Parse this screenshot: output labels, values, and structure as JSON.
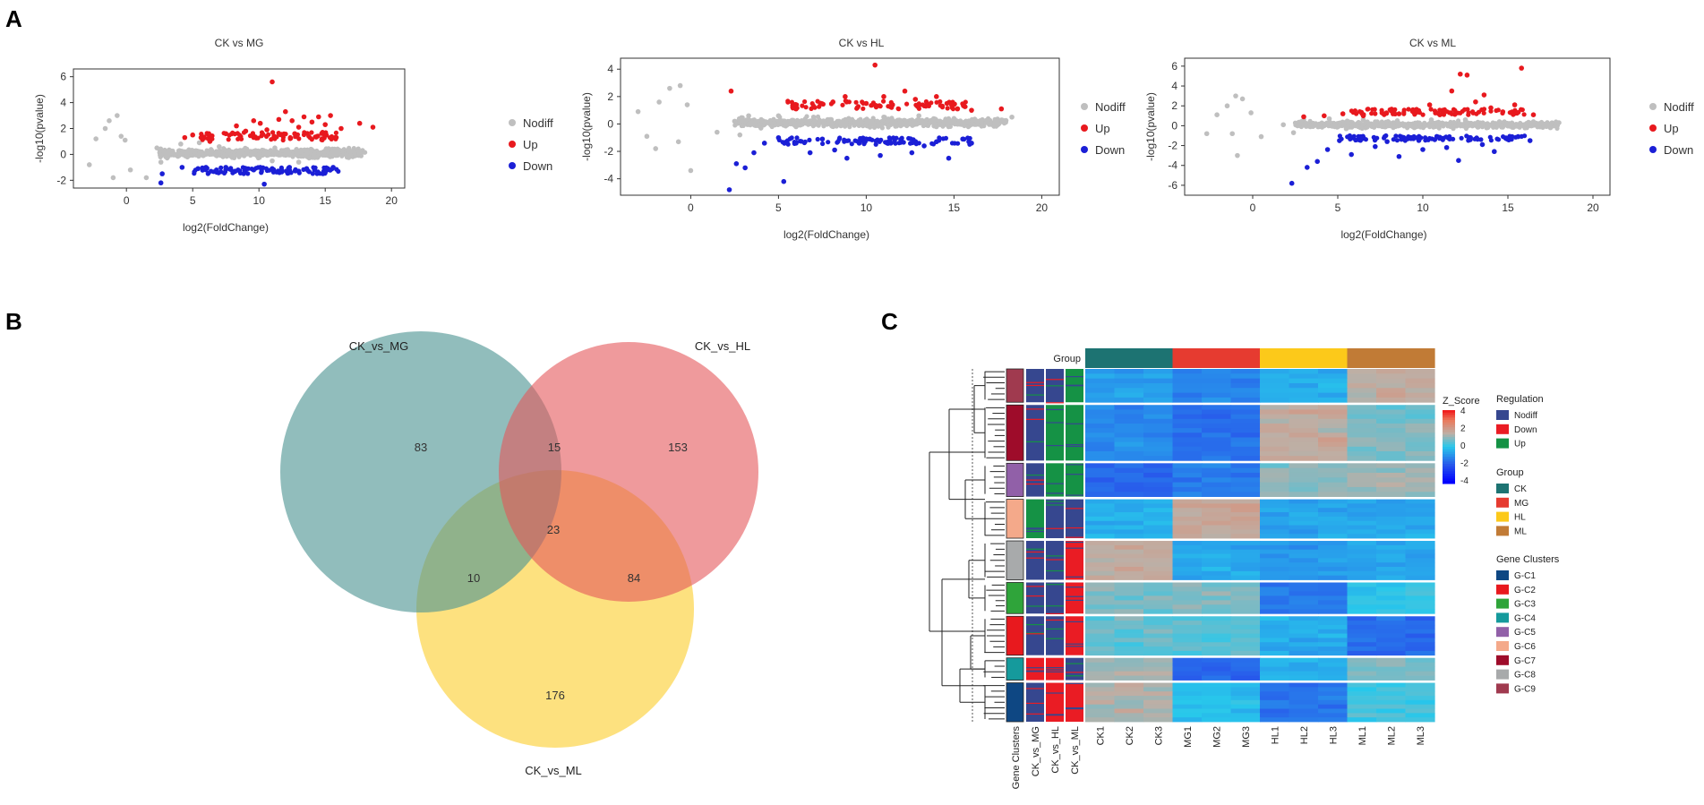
{
  "panels": {
    "a": "A",
    "b": "B",
    "c": "C"
  },
  "colors": {
    "nodiff": "#bfbfbf",
    "up": "#e8191e",
    "down": "#1b1fd6",
    "venn_a": "#4e9593",
    "venn_b": "#e4575a",
    "venn_c": "#fcd54e",
    "grp_ck": "#1d7372",
    "grp_mg": "#e63b30",
    "grp_hl": "#fcc91a",
    "grp_ml": "#c17b36",
    "reg_nodiff": "#36478f",
    "reg_down": "#ea1c24",
    "reg_up": "#159245"
  },
  "chart_data": [
    {
      "type": "scatter",
      "title": "CK vs MG",
      "xlabel": "log2(FoldChange)",
      "ylabel": "-log10(pvalue)",
      "xlim": [
        -4,
        21
      ],
      "ylim": [
        -2.6,
        6.6
      ],
      "xticks": [
        0,
        5,
        10,
        15,
        20
      ],
      "yticks": [
        -2,
        0,
        2,
        4,
        6
      ],
      "legend": [
        "Nodiff",
        "Up",
        "Down"
      ],
      "nodiff_points": [
        [
          -2.8,
          -0.8
        ],
        [
          -2.3,
          1.2
        ],
        [
          -1.6,
          2.0
        ],
        [
          -1.3,
          2.6
        ],
        [
          -0.7,
          3.0
        ],
        [
          -0.4,
          1.4
        ],
        [
          -1.0,
          -1.8
        ],
        [
          0.3,
          -1.2
        ],
        [
          1.5,
          -1.8
        ],
        [
          -0.1,
          1.1
        ],
        [
          2.3,
          0.5
        ],
        [
          2.6,
          -0.6
        ],
        [
          3.0,
          0.2
        ],
        [
          4.1,
          0.8
        ],
        [
          4.6,
          -0.2
        ],
        [
          5.5,
          0.9
        ],
        [
          6.2,
          0.1
        ],
        [
          7.0,
          0.6
        ],
        [
          8.0,
          -0.1
        ],
        [
          9.0,
          0.4
        ],
        [
          10.0,
          0.0
        ],
        [
          11.2,
          0.5
        ],
        [
          12.3,
          0.1
        ],
        [
          13.5,
          0.3
        ],
        [
          14.5,
          0.0
        ],
        [
          16.0,
          0.3
        ],
        [
          17.6,
          0.2
        ],
        [
          11.0,
          -0.5
        ],
        [
          13.0,
          -0.6
        ]
      ],
      "up_points": [
        [
          4.4,
          1.3
        ],
        [
          5.0,
          1.5
        ],
        [
          6.3,
          1.0
        ],
        [
          7.5,
          1.6
        ],
        [
          8.3,
          2.2
        ],
        [
          9.0,
          1.8
        ],
        [
          9.6,
          2.6
        ],
        [
          10.1,
          2.4
        ],
        [
          10.6,
          1.9
        ],
        [
          11.0,
          5.6
        ],
        [
          11.5,
          2.7
        ],
        [
          12.0,
          3.3
        ],
        [
          12.5,
          2.6
        ],
        [
          13.0,
          2.1
        ],
        [
          13.4,
          2.9
        ],
        [
          14.0,
          2.5
        ],
        [
          14.5,
          2.9
        ],
        [
          15.0,
          2.3
        ],
        [
          15.4,
          3.0
        ],
        [
          16.2,
          2.0
        ],
        [
          17.6,
          2.4
        ],
        [
          18.6,
          2.1
        ],
        [
          12.7,
          1.6
        ],
        [
          14.8,
          1.7
        ]
      ],
      "down_points": [
        [
          2.6,
          -2.2
        ],
        [
          2.7,
          -1.5
        ],
        [
          4.2,
          -1.0
        ],
        [
          5.4,
          -1.1
        ],
        [
          6.0,
          -1.0
        ],
        [
          6.8,
          -1.2
        ],
        [
          7.5,
          -1.0
        ],
        [
          8.2,
          -1.3
        ],
        [
          9.0,
          -1.1
        ],
        [
          9.6,
          -1.2
        ],
        [
          10.1,
          -1.0
        ],
        [
          10.4,
          -2.3
        ],
        [
          11.0,
          -1.1
        ],
        [
          11.7,
          -1.2
        ],
        [
          12.3,
          -1.0
        ],
        [
          13.0,
          -1.3
        ],
        [
          13.6,
          -1.1
        ],
        [
          14.2,
          -1.2
        ],
        [
          15.0,
          -1.4
        ],
        [
          15.6,
          -1.0
        ]
      ]
    },
    {
      "type": "scatter",
      "title": "CK vs HL",
      "xlabel": "log2(FoldChange)",
      "ylabel": "-log10(pvalue)",
      "xlim": [
        -4,
        21
      ],
      "ylim": [
        -5.2,
        4.8
      ],
      "xticks": [
        0,
        5,
        10,
        15,
        20
      ],
      "yticks": [
        -4,
        -2,
        0,
        2,
        4
      ],
      "legend": [
        "Nodiff",
        "Up",
        "Down"
      ],
      "nodiff_points": [
        [
          -3.0,
          0.9
        ],
        [
          -2.5,
          -0.9
        ],
        [
          -1.8,
          1.6
        ],
        [
          -1.2,
          2.6
        ],
        [
          -0.6,
          2.8
        ],
        [
          -0.2,
          1.4
        ],
        [
          -0.7,
          -1.3
        ],
        [
          0.0,
          -3.4
        ],
        [
          -2.0,
          -1.8
        ],
        [
          1.5,
          -0.6
        ],
        [
          2.5,
          0.2
        ],
        [
          2.8,
          -0.8
        ],
        [
          3.3,
          0.6
        ],
        [
          4.0,
          -0.3
        ],
        [
          5.0,
          0.6
        ],
        [
          6.0,
          -0.2
        ],
        [
          7.0,
          0.5
        ],
        [
          8.0,
          0.1
        ],
        [
          9.0,
          0.4
        ],
        [
          10.0,
          -0.1
        ],
        [
          11.0,
          0.5
        ],
        [
          12.0,
          0.0
        ],
        [
          13.0,
          0.6
        ],
        [
          14.0,
          -0.2
        ],
        [
          15.0,
          0.4
        ],
        [
          16.3,
          0.2
        ],
        [
          17.5,
          0.0
        ],
        [
          18.3,
          0.5
        ]
      ],
      "up_points": [
        [
          2.3,
          2.4
        ],
        [
          6.0,
          1.1
        ],
        [
          7.0,
          1.3
        ],
        [
          8.1,
          1.6
        ],
        [
          8.8,
          2.0
        ],
        [
          9.5,
          1.2
        ],
        [
          10.0,
          1.5
        ],
        [
          10.5,
          4.3
        ],
        [
          11.0,
          2.0
        ],
        [
          11.5,
          1.4
        ],
        [
          12.2,
          2.4
        ],
        [
          12.8,
          1.8
        ],
        [
          13.4,
          1.3
        ],
        [
          14.0,
          2.0
        ],
        [
          14.6,
          1.5
        ],
        [
          15.2,
          1.1
        ],
        [
          16.0,
          1.0
        ],
        [
          17.7,
          1.1
        ]
      ],
      "down_points": [
        [
          2.2,
          -4.8
        ],
        [
          2.6,
          -2.9
        ],
        [
          3.1,
          -3.2
        ],
        [
          3.6,
          -2.1
        ],
        [
          4.2,
          -1.4
        ],
        [
          5.0,
          -1.0
        ],
        [
          5.3,
          -4.2
        ],
        [
          6.0,
          -1.4
        ],
        [
          6.8,
          -2.1
        ],
        [
          7.5,
          -1.1
        ],
        [
          8.2,
          -1.9
        ],
        [
          8.9,
          -2.5
        ],
        [
          9.6,
          -1.4
        ],
        [
          10.2,
          -1.1
        ],
        [
          10.8,
          -2.3
        ],
        [
          11.4,
          -1.4
        ],
        [
          12.0,
          -1.2
        ],
        [
          12.6,
          -2.1
        ],
        [
          13.3,
          -1.6
        ],
        [
          14.0,
          -1.3
        ],
        [
          14.7,
          -2.5
        ],
        [
          15.5,
          -1.1
        ],
        [
          16.0,
          -1.4
        ]
      ]
    },
    {
      "type": "scatter",
      "title": "CK vs ML",
      "xlabel": "log2(FoldChange)",
      "ylabel": "-log10(pvalue)",
      "xlim": [
        -4,
        21
      ],
      "ylim": [
        -7.0,
        6.8
      ],
      "xticks": [
        0,
        5,
        10,
        15,
        20
      ],
      "yticks": [
        -6,
        -4,
        -2,
        0,
        2,
        4,
        6
      ],
      "legend": [
        "Nodiff",
        "Up",
        "Down"
      ],
      "nodiff_points": [
        [
          -2.7,
          -0.8
        ],
        [
          -2.1,
          1.1
        ],
        [
          -1.5,
          2.0
        ],
        [
          -1.0,
          3.0
        ],
        [
          -0.6,
          2.7
        ],
        [
          -0.1,
          1.3
        ],
        [
          -1.2,
          -0.8
        ],
        [
          -0.9,
          -3.0
        ],
        [
          0.5,
          -1.1
        ],
        [
          1.8,
          0.1
        ],
        [
          2.4,
          -0.7
        ],
        [
          3.0,
          0.6
        ],
        [
          3.6,
          0.0
        ],
        [
          4.5,
          0.7
        ],
        [
          5.5,
          -0.3
        ],
        [
          6.5,
          0.6
        ],
        [
          7.5,
          0.0
        ],
        [
          8.5,
          0.5
        ],
        [
          9.5,
          -0.2
        ],
        [
          10.5,
          0.6
        ],
        [
          11.5,
          0.1
        ],
        [
          12.5,
          0.6
        ],
        [
          13.5,
          -0.1
        ],
        [
          14.5,
          0.4
        ],
        [
          15.5,
          0.1
        ],
        [
          16.5,
          0.4
        ],
        [
          17.5,
          -0.2
        ],
        [
          18.0,
          0.3
        ]
      ],
      "up_points": [
        [
          3.0,
          0.9
        ],
        [
          4.2,
          1.0
        ],
        [
          5.3,
          1.2
        ],
        [
          6.5,
          1.0
        ],
        [
          7.6,
          1.3
        ],
        [
          8.6,
          1.2
        ],
        [
          9.6,
          1.6
        ],
        [
          10.4,
          2.1
        ],
        [
          11.0,
          1.1
        ],
        [
          11.7,
          3.5
        ],
        [
          12.2,
          5.2
        ],
        [
          12.6,
          5.1
        ],
        [
          13.1,
          2.4
        ],
        [
          13.6,
          3.1
        ],
        [
          14.0,
          1.8
        ],
        [
          14.7,
          1.4
        ],
        [
          15.4,
          2.1
        ],
        [
          15.8,
          5.8
        ],
        [
          16.5,
          1.1
        ]
      ],
      "down_points": [
        [
          2.3,
          -5.8
        ],
        [
          3.2,
          -4.2
        ],
        [
          3.8,
          -3.6
        ],
        [
          4.4,
          -2.4
        ],
        [
          5.1,
          -1.5
        ],
        [
          5.8,
          -2.9
        ],
        [
          6.5,
          -1.2
        ],
        [
          7.2,
          -2.1
        ],
        [
          7.9,
          -1.6
        ],
        [
          8.6,
          -3.1
        ],
        [
          9.3,
          -1.3
        ],
        [
          10.0,
          -2.4
        ],
        [
          10.7,
          -1.4
        ],
        [
          11.4,
          -2.2
        ],
        [
          12.1,
          -3.5
        ],
        [
          12.8,
          -1.2
        ],
        [
          13.5,
          -1.9
        ],
        [
          14.2,
          -2.6
        ],
        [
          14.9,
          -1.3
        ],
        [
          15.6,
          -1.1
        ],
        [
          16.3,
          -1.5
        ]
      ]
    },
    {
      "type": "venn",
      "sets": [
        "CK_vs_MG",
        "CK_vs_HL",
        "CK_vs_ML"
      ],
      "regions": {
        "mg_only": "83",
        "mg_hl": "15",
        "hl_only": "153",
        "all": "23",
        "mg_ml": "10",
        "hl_ml": "84",
        "ml_only": "176"
      }
    },
    {
      "type": "heatmap",
      "top_label": "Group",
      "columns": [
        "CK1",
        "CK2",
        "CK3",
        "MG1",
        "MG2",
        "MG3",
        "HL1",
        "HL2",
        "HL3",
        "ML1",
        "ML2",
        "ML3"
      ],
      "annotation_columns": [
        "Gene Clusters",
        "CK_vs_MG",
        "CK_vs_HL",
        "CK_vs_ML"
      ],
      "column_groups": [
        "CK",
        "CK",
        "CK",
        "MG",
        "MG",
        "MG",
        "HL",
        "HL",
        "HL",
        "ML",
        "ML",
        "ML"
      ],
      "colorbar": {
        "title": "Z_Score",
        "ticks": [
          "4",
          "2",
          "0",
          "-2",
          "-4"
        ]
      },
      "clusters": [
        {
          "name": "G-C9",
          "weight": 3,
          "color": "#a03a4f",
          "reg": [
            "nodiff",
            "nodiff",
            "up"
          ],
          "z": [
            -0.7,
            -0.7,
            -0.7,
            -1.2,
            -1.2,
            -1.2,
            -0.4,
            -0.4,
            -0.4,
            1.6,
            1.6,
            1.6
          ]
        },
        {
          "name": "G-C7",
          "weight": 5,
          "color": "#9e0c2a",
          "reg": [
            "nodiff",
            "up",
            "up"
          ],
          "z": [
            -1.1,
            -1.1,
            -1.1,
            -1.6,
            -1.6,
            -1.6,
            1.6,
            1.6,
            1.6,
            0.8,
            0.8,
            0.8
          ]
        },
        {
          "name": "G-C5",
          "weight": 3,
          "color": "#9160a8",
          "reg": [
            "nodiff",
            "up",
            "up"
          ],
          "z": [
            -1.8,
            -1.8,
            -1.8,
            -1.4,
            -1.4,
            -1.4,
            1.0,
            1.0,
            1.0,
            1.2,
            1.2,
            1.2
          ]
        },
        {
          "name": "G-C6",
          "weight": 3.5,
          "color": "#f4a98a",
          "reg": [
            "up",
            "nodiff",
            "nodiff"
          ],
          "z": [
            -0.4,
            -0.4,
            -0.4,
            1.8,
            1.8,
            1.8,
            -0.6,
            -0.6,
            -0.6,
            -0.6,
            -0.6,
            -0.6
          ]
        },
        {
          "name": "G-C8",
          "weight": 3.5,
          "color": "#a8aaab",
          "reg": [
            "nodiff",
            "nodiff",
            "down"
          ],
          "z": [
            1.6,
            1.6,
            1.6,
            -0.6,
            -0.6,
            -0.6,
            -0.9,
            -0.9,
            -0.9,
            -0.6,
            -0.6,
            -0.6
          ]
        },
        {
          "name": "G-C3",
          "weight": 2.8,
          "color": "#2fa43a",
          "reg": [
            "nodiff",
            "nodiff",
            "down"
          ],
          "z": [
            0.8,
            0.8,
            0.8,
            0.9,
            0.9,
            0.9,
            -1.5,
            -1.5,
            -1.5,
            0.1,
            0.1,
            0.1
          ]
        },
        {
          "name": "G-C2",
          "weight": 3.5,
          "color": "#e8191e",
          "reg": [
            "nodiff",
            "nodiff",
            "down"
          ],
          "z": [
            0.6,
            0.6,
            0.6,
            0.5,
            0.5,
            0.5,
            -0.5,
            -0.5,
            -0.5,
            -1.7,
            -1.7,
            -1.7
          ]
        },
        {
          "name": "G-C4",
          "weight": 2.0,
          "color": "#159a9c",
          "reg": [
            "down",
            "down",
            "nodiff"
          ],
          "z": [
            1.2,
            1.2,
            1.2,
            -1.8,
            -1.8,
            -1.8,
            -0.4,
            -0.4,
            -0.4,
            0.8,
            0.8,
            0.8
          ]
        },
        {
          "name": "G-C1",
          "weight": 3.5,
          "color": "#0e4783",
          "reg": [
            "nodiff",
            "down",
            "down"
          ],
          "z": [
            1.3,
            1.3,
            1.3,
            -0.2,
            -0.2,
            -0.2,
            -1.5,
            -1.5,
            -1.5,
            0.3,
            0.3,
            0.3
          ]
        }
      ],
      "legend_regulation": {
        "title": "Regulation",
        "items": [
          "Nodiff",
          "Down",
          "Up"
        ]
      },
      "legend_group": {
        "title": "Group",
        "items": [
          "CK",
          "MG",
          "HL",
          "ML"
        ]
      },
      "legend_clusters": {
        "title": "Gene Clusters",
        "items": [
          "G-C1",
          "G-C2",
          "G-C3",
          "G-C4",
          "G-C5",
          "G-C6",
          "G-C7",
          "G-C8",
          "G-C9"
        ]
      }
    }
  ]
}
